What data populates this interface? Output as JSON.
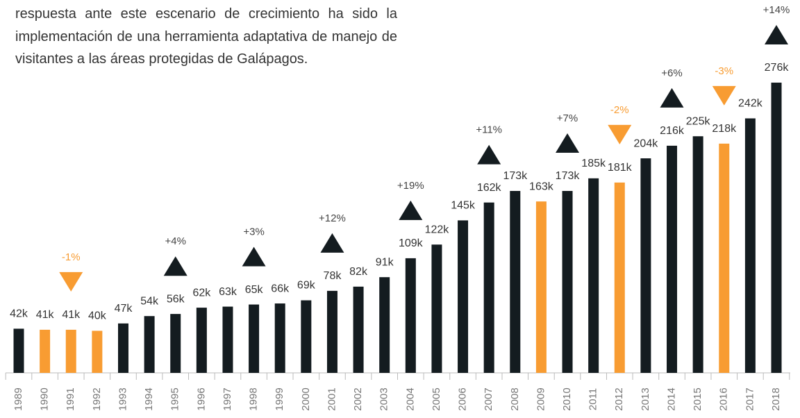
{
  "text": "respuesta ante este escenario de crecimiento ha sido la implementación de una herramienta adaptativa de manejo de visitantes a las áreas protegidas de Galápagos.",
  "chart_data": {
    "type": "bar",
    "categories": [
      "1989",
      "1990",
      "1991",
      "1992",
      "1993",
      "1994",
      "1995",
      "1996",
      "1997",
      "1998",
      "1999",
      "2000",
      "2001",
      "2002",
      "2003",
      "2004",
      "2005",
      "2006",
      "2007",
      "2008",
      "2009",
      "2010",
      "2011",
      "2012",
      "2013",
      "2014",
      "2015",
      "2016",
      "2017",
      "2018"
    ],
    "values": [
      42,
      41,
      41,
      40,
      47,
      54,
      56,
      62,
      63,
      65,
      66,
      69,
      78,
      82,
      91,
      109,
      122,
      145,
      162,
      173,
      163,
      173,
      185,
      181,
      204,
      216,
      225,
      218,
      242,
      276
    ],
    "value_labels": [
      "42k",
      "41k",
      "41k",
      "40k",
      "47k",
      "54k",
      "56k",
      "62k",
      "63k",
      "65k",
      "66k",
      "69k",
      "78k",
      "82k",
      "91k",
      "109k",
      "122k",
      "145k",
      "162k",
      "173k",
      "163k",
      "173k",
      "185k",
      "181k",
      "204k",
      "216k",
      "225k",
      "218k",
      "242k",
      "276k"
    ],
    "colors": [
      "#141c20",
      "#f89c32",
      "#f89c32",
      "#f89c32",
      "#141c20",
      "#141c20",
      "#141c20",
      "#141c20",
      "#141c20",
      "#141c20",
      "#141c20",
      "#141c20",
      "#141c20",
      "#141c20",
      "#141c20",
      "#141c20",
      "#141c20",
      "#141c20",
      "#141c20",
      "#141c20",
      "#f89c32",
      "#141c20",
      "#141c20",
      "#f89c32",
      "#141c20",
      "#141c20",
      "#141c20",
      "#f89c32",
      "#141c20",
      "#141c20"
    ],
    "annotations": [
      {
        "index": 2,
        "text": "-1%",
        "direction": "down"
      },
      {
        "index": 6,
        "text": "+4%",
        "direction": "up"
      },
      {
        "index": 9,
        "text": "+3%",
        "direction": "up"
      },
      {
        "index": 12,
        "text": "+12%",
        "direction": "up"
      },
      {
        "index": 15,
        "text": "+19%",
        "direction": "up"
      },
      {
        "index": 18,
        "text": "+11%",
        "direction": "up"
      },
      {
        "index": 21,
        "text": "+7%",
        "direction": "up"
      },
      {
        "index": 23,
        "text": "-2%",
        "direction": "down"
      },
      {
        "index": 25,
        "text": "+6%",
        "direction": "up"
      },
      {
        "index": 27,
        "text": "-3%",
        "direction": "down"
      },
      {
        "index": 29,
        "text": "+14%",
        "direction": "up"
      }
    ]
  }
}
